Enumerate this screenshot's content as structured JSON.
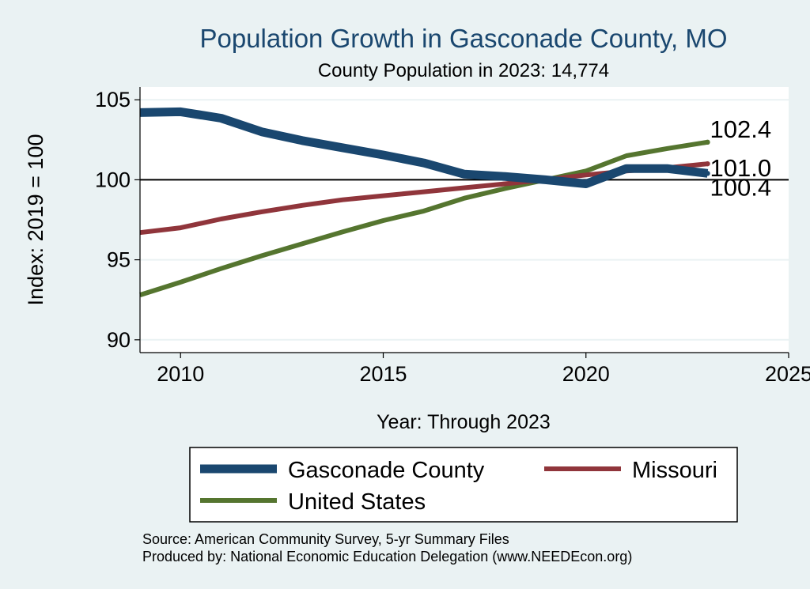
{
  "chart_data": {
    "type": "line",
    "title": "Population Growth in Gasconade County, MO",
    "subtitle": "County Population in 2023: 14,774",
    "xlabel": "Year: Through 2023",
    "ylabel": "Index: 2019 = 100",
    "xlim": [
      2009,
      2025
    ],
    "ylim": [
      89.2,
      105.8
    ],
    "x_ticks": [
      "2010",
      "2015",
      "2020",
      "2025"
    ],
    "y_ticks": [
      "90",
      "95",
      "100",
      "105"
    ],
    "reference_line": 100,
    "x": [
      2009,
      2010,
      2011,
      2012,
      2013,
      2014,
      2015,
      2016,
      2017,
      2018,
      2019,
      2020,
      2021,
      2022,
      2023
    ],
    "series": [
      {
        "name": "Gasconade  County",
        "color": "#1a476f",
        "values": [
          104.2,
          104.25,
          103.85,
          103.0,
          102.45,
          102.0,
          101.55,
          101.05,
          100.35,
          100.2,
          100.0,
          99.75,
          100.7,
          100.7,
          100.4
        ],
        "end_label": "100.4"
      },
      {
        "name": "Missouri",
        "color": "#90353b",
        "values": [
          96.7,
          97.0,
          97.55,
          98.0,
          98.4,
          98.75,
          99.0,
          99.25,
          99.5,
          99.75,
          100.0,
          100.3,
          100.55,
          100.75,
          101.0
        ],
        "end_label": "101.0"
      },
      {
        "name": "United States",
        "color": "#55752f",
        "values": [
          92.8,
          93.6,
          94.45,
          95.25,
          96.0,
          96.75,
          97.45,
          98.05,
          98.85,
          99.45,
          100.0,
          100.55,
          101.5,
          101.95,
          102.35
        ],
        "end_label": "102.4"
      }
    ],
    "legend": {
      "items": [
        "Gasconade  County",
        "Missouri",
        "United States"
      ]
    }
  },
  "footer": {
    "source": "Source: American Community Survey, 5-yr Summary Files",
    "produced": "Produced by: National Economic Education Delegation (www.NEEDEcon.org)"
  }
}
